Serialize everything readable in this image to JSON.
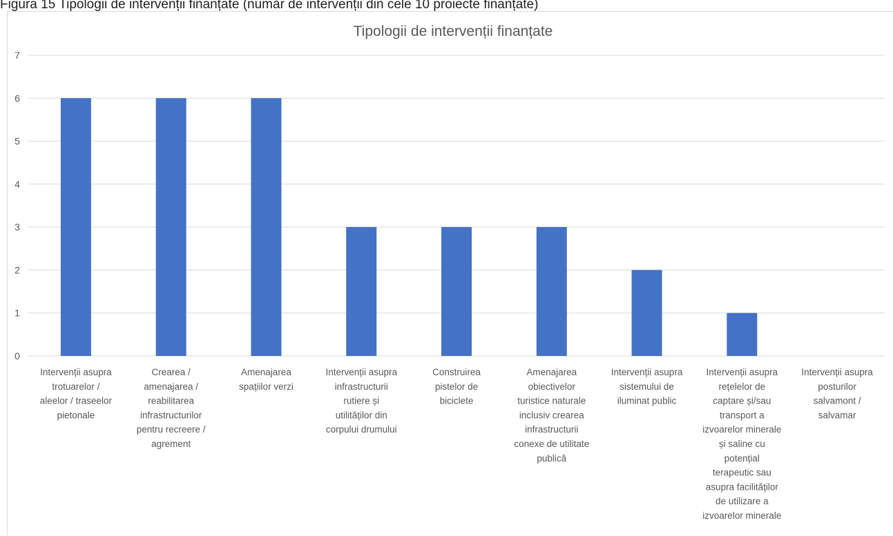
{
  "caption": "Figura 15 Tipologii de intervenții finanțate (număr de intervenții din cele 10 proiecte finanțate)",
  "chart_data": {
    "type": "bar",
    "title": "Tipologii de intervenții finanțate",
    "xlabel": "",
    "ylabel": "",
    "ylim": [
      0,
      7
    ],
    "yticks": [
      0,
      1,
      2,
      3,
      4,
      5,
      6,
      7
    ],
    "grid": true,
    "legend": "none",
    "bar_color": "#4472c4",
    "categories": [
      "Intervenții asupra trotuarelor / aleelor / traseelor pietonale",
      "Crearea / amenajarea / reabilitarea infrastructurilor pentru recreere / agrement",
      "Amenajarea spațiilor verzi",
      "Intervenții asupra infrastructurii rutiere și utilităților din corpului drumului",
      "Construirea pistelor de biciclete",
      "Amenajarea obiectivelor turistice naturale inclusiv crearea infrastructurii conexe de utilitate publică",
      "Intervenții asupra sistemului de iluminat public",
      "Intervenții asupra rețelelor de captare și/sau transport a izvoarelor minerale și saline cu potențial terapeutic sau asupra facilităților de utilizare a izvoarelor minerale",
      "Intervenții asupra posturilor salvamont / salvamar"
    ],
    "category_lines": [
      [
        "Intervenții asupra",
        "trotuarelor /",
        "aleelor / traseelor",
        "pietonale"
      ],
      [
        "Crearea /",
        "amenajarea /",
        "reabilitarea",
        "infrastructurilor",
        "pentru recreere /",
        "agrement"
      ],
      [
        "Amenajarea",
        "spațiilor verzi"
      ],
      [
        "Intervenții asupra",
        "infrastructurii",
        "rutiere și",
        "utilităților din",
        "corpului drumului"
      ],
      [
        "Construirea",
        "pistelor de",
        "biciclete"
      ],
      [
        "Amenajarea",
        "obiectivelor",
        "turistice naturale",
        "inclusiv crearea",
        "infrastructurii",
        "conexe de utilitate",
        "publică"
      ],
      [
        "Intervenții asupra",
        "sistemului de",
        "iluminat public"
      ],
      [
        "Intervenții asupra",
        "rețelelor de",
        "captare și/sau",
        "transport a",
        "izvoarelor minerale",
        "și saline cu",
        "potențial",
        "terapeutic sau",
        "asupra facilităților",
        "de utilizare a",
        "izvoarelor minerale"
      ],
      [
        "Intervenții asupra",
        "posturilor",
        "salvamont /",
        "salvamar"
      ]
    ],
    "values": [
      6,
      6,
      6,
      3,
      3,
      3,
      2,
      1,
      0
    ]
  }
}
